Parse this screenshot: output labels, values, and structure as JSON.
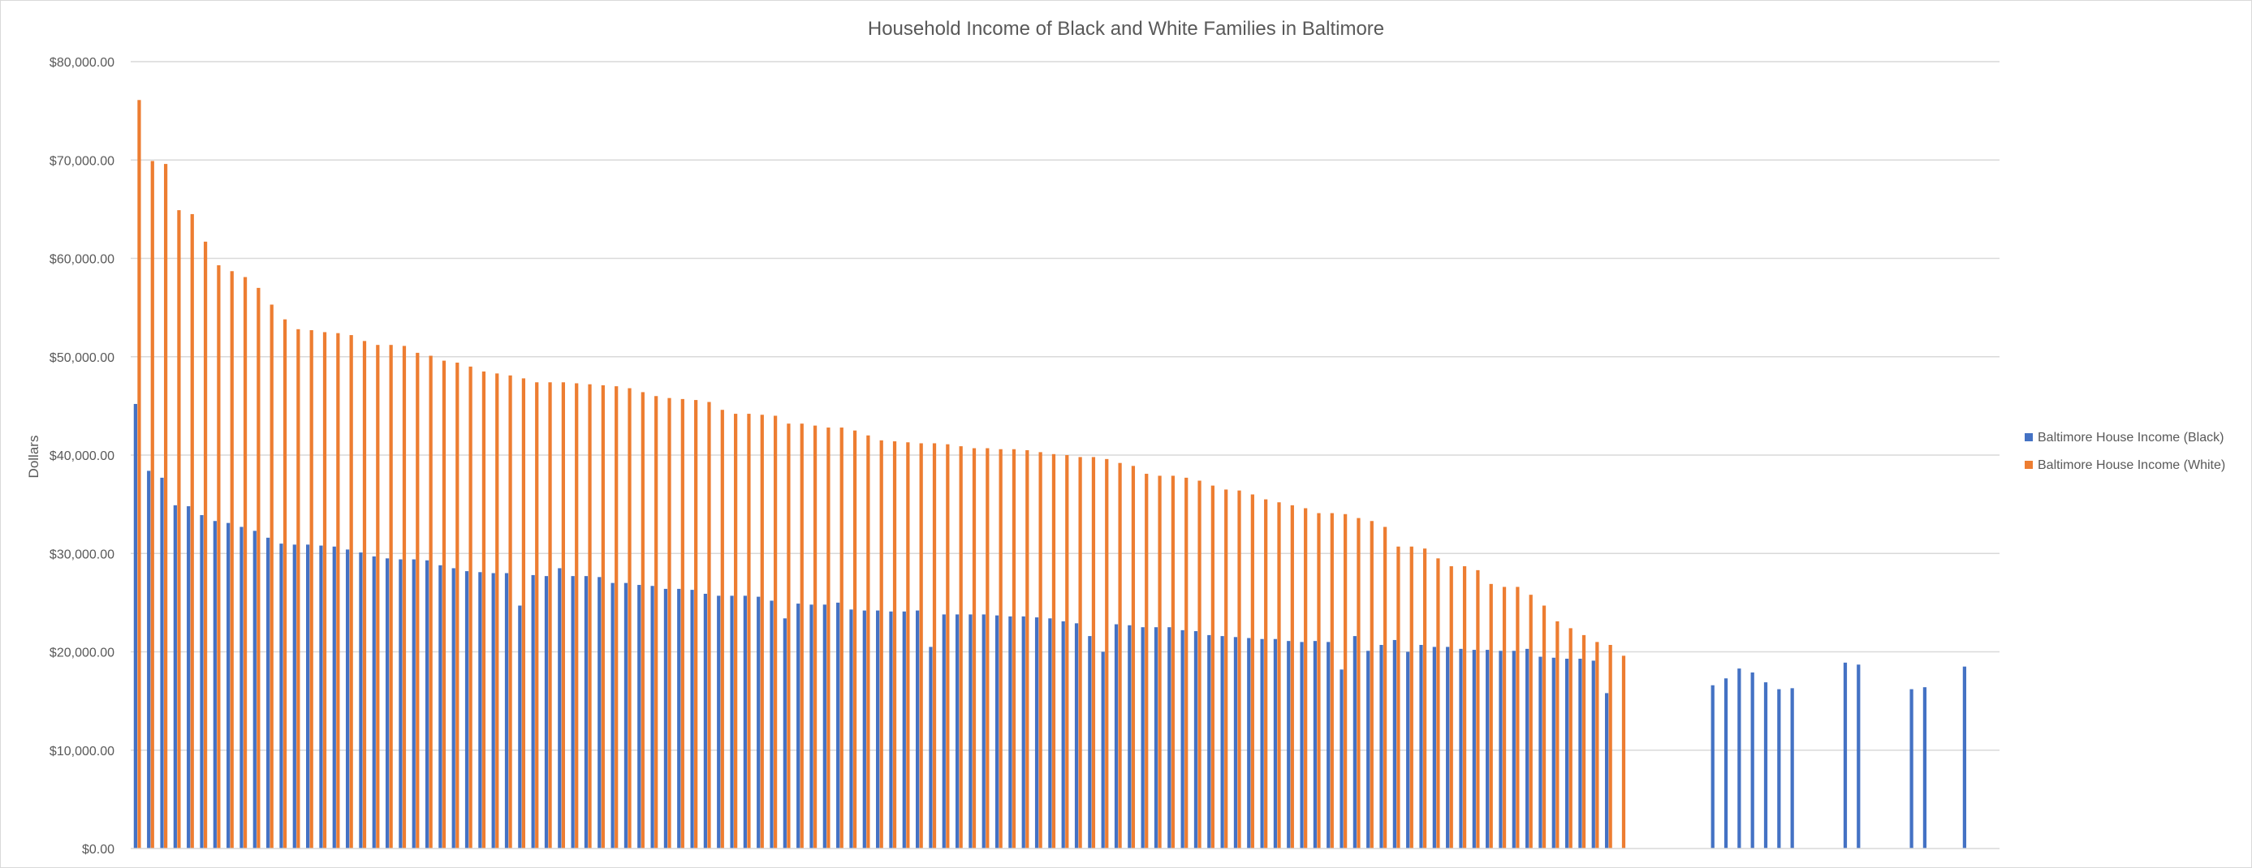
{
  "chart_data": {
    "type": "bar",
    "title": "Household Income of Black and White Families in Baltimore",
    "ylabel": "Dollars",
    "xlabel": "",
    "ylim": [
      0,
      80000
    ],
    "yticks": [
      "$0.00",
      "$10,000.00",
      "$20,000.00",
      "$30,000.00",
      "$40,000.00",
      "$50,000.00",
      "$60,000.00",
      "$70,000.00",
      "$80,000.00"
    ],
    "grid": true,
    "legend_position": "right",
    "series": [
      {
        "name": "Baltimore House Income (Black)",
        "color": "#4472C4",
        "values": [
          45200,
          38400,
          37700,
          34900,
          34800,
          33900,
          33300,
          33100,
          32700,
          32300,
          31600,
          31000,
          30900,
          30900,
          30800,
          30700,
          30400,
          30100,
          29700,
          29500,
          29400,
          29400,
          29300,
          28800,
          28500,
          28200,
          28100,
          28000,
          28000,
          24700,
          27800,
          27700,
          28500,
          27700,
          27700,
          27600,
          27000,
          27000,
          26800,
          26700,
          26400,
          26400,
          26300,
          25900,
          25700,
          25700,
          25700,
          25600,
          25200,
          23400,
          24900,
          24800,
          24800,
          25000,
          24300,
          24200,
          24200,
          24100,
          24100,
          24200,
          20500,
          23800,
          23800,
          23800,
          23800,
          23700,
          23600,
          23600,
          23500,
          23400,
          23100,
          22900,
          21600,
          20000,
          22800,
          22700,
          22500,
          22500,
          22500,
          22200,
          22100,
          21700,
          21600,
          21500,
          21400,
          21300,
          21300,
          21100,
          21000,
          21100,
          21000,
          18200,
          21600,
          20100,
          20700,
          21200,
          20000,
          20700,
          20500,
          20500,
          20300,
          20200,
          20200,
          20100,
          20100,
          20300,
          19500,
          19400,
          19300,
          19300,
          19100,
          15800,
          null,
          null,
          null,
          null,
          null,
          null,
          null,
          16600,
          17300,
          18300,
          17900,
          16900,
          16200,
          16300,
          null,
          null,
          null,
          18900,
          18700,
          null,
          null,
          null,
          16200,
          16400,
          null,
          null,
          18500
        ]
      },
      {
        "name": "Baltimore House Income (White)",
        "color": "#ED7D31",
        "values": [
          76100,
          69900,
          69600,
          64900,
          64500,
          61700,
          59300,
          58700,
          58100,
          57000,
          55300,
          53800,
          52800,
          52700,
          52500,
          52400,
          52200,
          51600,
          51200,
          51200,
          51100,
          50400,
          50100,
          49600,
          49400,
          49000,
          48500,
          48300,
          48100,
          47800,
          47400,
          47400,
          47400,
          47300,
          47200,
          47100,
          47000,
          46800,
          46400,
          46000,
          45800,
          45700,
          45600,
          45400,
          44600,
          44200,
          44200,
          44100,
          44000,
          43200,
          43200,
          43000,
          42800,
          42800,
          42500,
          42000,
          41500,
          41400,
          41300,
          41200,
          41200,
          41100,
          40900,
          40700,
          40700,
          40600,
          40600,
          40500,
          40300,
          40100,
          40000,
          39800,
          39800,
          39600,
          39200,
          38900,
          38100,
          37900,
          37900,
          37700,
          37400,
          36900,
          36500,
          36400,
          36000,
          35500,
          35200,
          34900,
          34600,
          34100,
          34100,
          34000,
          33600,
          33300,
          32700,
          30700,
          30700,
          30500,
          29500,
          28700,
          28700,
          28300,
          26900,
          26600,
          26600,
          25800,
          24700,
          23100,
          22400,
          21700,
          21000,
          20700,
          19600,
          null,
          null,
          null,
          null,
          null,
          null,
          null,
          null,
          null,
          null,
          null,
          null,
          null,
          null,
          null,
          null,
          null,
          null,
          null,
          null,
          null,
          null,
          null,
          null,
          null,
          null,
          null,
          null
        ]
      }
    ]
  }
}
